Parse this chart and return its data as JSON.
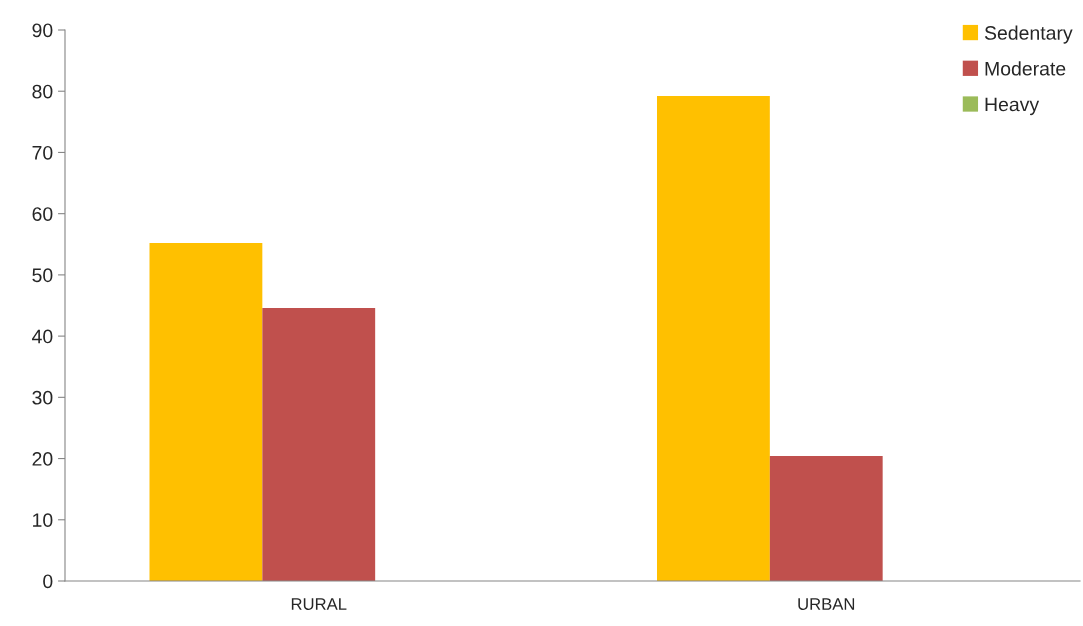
{
  "chart_data": {
    "type": "bar",
    "categories": [
      "RURAL",
      "URBAN"
    ],
    "series": [
      {
        "name": "Sedentary",
        "color": "#ffc000",
        "values": [
          55.2,
          79.2
        ]
      },
      {
        "name": "Moderate",
        "color": "#c0504d",
        "values": [
          44.6,
          20.4
        ]
      },
      {
        "name": "Heavy",
        "color": "#9bbb59",
        "values": [
          null,
          null
        ]
      }
    ],
    "ylim": [
      0,
      90
    ],
    "yticks": [
      0,
      10,
      20,
      30,
      40,
      50,
      60,
      70,
      80,
      90
    ],
    "grid": false,
    "legend": "top right"
  }
}
